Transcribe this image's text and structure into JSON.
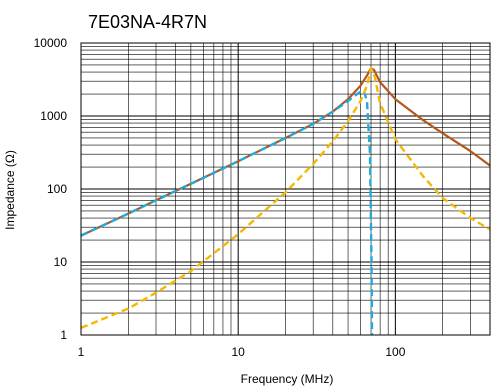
{
  "chart_data": {
    "type": "line",
    "title": "7E03NA-4R7N",
    "xlabel": "Frequency (MHz)",
    "ylabel": "Impedance (Ω)",
    "x_scale": "log",
    "y_scale": "log",
    "xlim": [
      1,
      400
    ],
    "ylim": [
      1,
      10000
    ],
    "x_ticks": [
      {
        "value": 1,
        "label": "1"
      },
      {
        "value": 10,
        "label": "10"
      },
      {
        "value": 100,
        "label": "100"
      }
    ],
    "y_ticks": [
      {
        "value": 1,
        "label": "1"
      },
      {
        "value": 10,
        "label": "10"
      },
      {
        "value": 100,
        "label": "100"
      },
      {
        "value": 1000,
        "label": "1000"
      },
      {
        "value": 10000,
        "label": "10000"
      }
    ],
    "grid": true,
    "legend": "none",
    "series": [
      {
        "color": "#b5561a",
        "style": "solid",
        "points": [
          [
            1,
            23
          ],
          [
            2,
            46
          ],
          [
            3,
            70
          ],
          [
            5,
            118
          ],
          [
            10,
            240
          ],
          [
            20,
            500
          ],
          [
            30,
            780
          ],
          [
            40,
            1150
          ],
          [
            50,
            1700
          ],
          [
            60,
            2600
          ],
          [
            66,
            3600
          ],
          [
            70,
            4500
          ],
          [
            73,
            4300
          ],
          [
            80,
            2900
          ],
          [
            100,
            1700
          ],
          [
            150,
            880
          ],
          [
            200,
            580
          ],
          [
            300,
            330
          ],
          [
            400,
            210
          ]
        ]
      },
      {
        "color": "#1eaadd",
        "style": "dashed",
        "points": [
          [
            1,
            23
          ],
          [
            2,
            46
          ],
          [
            3,
            70
          ],
          [
            5,
            118
          ],
          [
            10,
            240
          ],
          [
            20,
            500
          ],
          [
            30,
            780
          ],
          [
            40,
            1150
          ],
          [
            50,
            1600
          ],
          [
            55,
            1900
          ],
          [
            60,
            2150
          ],
          [
            63,
            2200
          ],
          [
            66,
            1600
          ],
          [
            69,
            300
          ],
          [
            70.5,
            10
          ],
          [
            71,
            1
          ]
        ]
      },
      {
        "color": "#f5b800",
        "style": "dashed",
        "points": [
          [
            1,
            1.25
          ],
          [
            2,
            2.3
          ],
          [
            3,
            3.8
          ],
          [
            5,
            7.5
          ],
          [
            10,
            24
          ],
          [
            20,
            90
          ],
          [
            30,
            220
          ],
          [
            40,
            450
          ],
          [
            50,
            850
          ],
          [
            60,
            1600
          ],
          [
            66,
            2600
          ],
          [
            70,
            4500
          ],
          [
            74,
            3400
          ],
          [
            80,
            1500
          ],
          [
            100,
            480
          ],
          [
            150,
            150
          ],
          [
            200,
            75
          ],
          [
            300,
            40
          ],
          [
            400,
            28
          ]
        ]
      }
    ]
  }
}
